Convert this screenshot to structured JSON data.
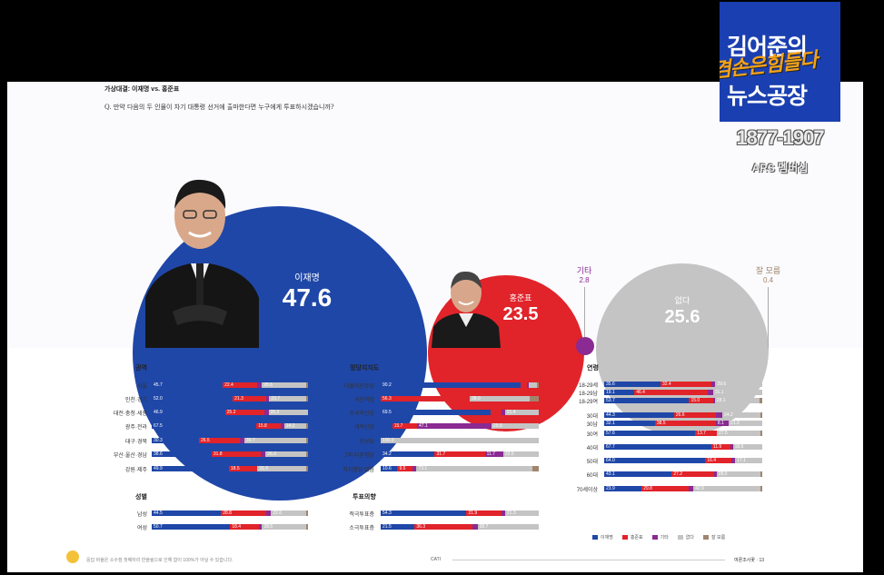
{
  "header": {
    "title": "가상대결: 이재명 vs. 홍준표",
    "question": "Q. 만약 다음의 두 인물이 차기 대통령 선거에 출마한다면 누구에게 투표하시겠습니까?"
  },
  "brand": {
    "line1": "김어준의",
    "line2": "겸손은힘들다",
    "line3": "뉴스공장",
    "phone": "1877-1907",
    "ars": "ARS 멤버십"
  },
  "colors": {
    "lee": "#1f47a8",
    "hong": "#e1232a",
    "other": "#8a2a92",
    "none": "#c4c4c4",
    "dontknow": "#a0856c"
  },
  "summary": {
    "lee_name": "이재명",
    "lee_value": "47.6",
    "hong_name": "홍준표",
    "hong_value": "23.5",
    "other_name": "기타",
    "other_value": "2.8",
    "none_name": "없다",
    "none_value": "25.6",
    "dk_name": "잘 모름",
    "dk_value": "0.4"
  },
  "chart_data": [
    {
      "type": "bar",
      "title": "권역",
      "stacked": true,
      "categories": [
        "서울",
        "인천·경기",
        "대전·충청·세종",
        "광주·전라",
        "대구·경북",
        "부산·울산·경남",
        "강원·제주"
      ],
      "series": [
        {
          "name": "이재명",
          "values": [
            45.7,
            52.0,
            46.9,
            67.5,
            30.3,
            38.6,
            49.9
          ]
        },
        {
          "name": "홍준표",
          "values": [
            22.4,
            21.3,
            25.2,
            15.8,
            26.5,
            31.8,
            18.5
          ]
        },
        {
          "name": "기타",
          "values": [
            2.8,
            2.2,
            2.7,
            2.2,
            2.6,
            3.0,
            0.0
          ]
        },
        {
          "name": "없다",
          "values": [
            28.6,
            23.7,
            25.2,
            14.2,
            39.7,
            26.3,
            31.5
          ]
        },
        {
          "name": "잘 모름",
          "values": [
            0.5,
            0.8,
            0.0,
            0.3,
            0.9,
            0.3,
            0.1
          ]
        }
      ]
    },
    {
      "type": "bar",
      "title": "정당지지도",
      "stacked": true,
      "categories": [
        "더불어민주당",
        "국민의힘",
        "조국혁신당",
        "개혁신당",
        "진보당",
        "그외 다른정당",
        "지지정당 없음"
      ],
      "series": [
        {
          "name": "이재명",
          "values": [
            90.2,
            0.0,
            69.5,
            7.3,
            0.0,
            34.2,
            10.6
          ]
        },
        {
          "name": "홍준표",
          "values": [
            3.9,
            56.3,
            6.8,
            15.7,
            0.0,
            31.7,
            9.5
          ]
        },
        {
          "name": "기타",
          "values": [
            0.5,
            0.0,
            2.3,
            47.1,
            0.0,
            11.7,
            2.6
          ]
        },
        {
          "name": "없다",
          "values": [
            5.2,
            38.0,
            21.4,
            29.9,
            100.0,
            22.5,
            73.1
          ]
        },
        {
          "name": "잘 모름",
          "values": [
            0.2,
            5.7,
            0.0,
            0.0,
            0.0,
            0.0,
            4.2
          ]
        }
      ]
    },
    {
      "type": "bar",
      "title": "연령",
      "stacked": true,
      "categories": [
        "18-29세",
        "18-29남",
        "18-29여",
        "30대",
        "30남",
        "30여",
        "40대",
        "50대",
        "60대",
        "70세이상"
      ],
      "series": [
        {
          "name": "이재명",
          "values": [
            35.6,
            19.1,
            53.7,
            44.3,
            32.1,
            57.6,
            67.7,
            64.0,
            43.1,
            23.9
          ]
        },
        {
          "name": "홍준표",
          "values": [
            32.4,
            46.4,
            15.0,
            26.6,
            38.5,
            13.7,
            11.9,
            16.4,
            27.2,
            29.8
          ]
        },
        {
          "name": "기타",
          "values": [
            2.4,
            3.4,
            1.3,
            4.1,
            8.1,
            0.0,
            1.8,
            2.5,
            1.4,
            3.2
          ]
        },
        {
          "name": "없다",
          "values": [
            29.6,
            31.1,
            28.1,
            24.2,
            21.3,
            27.5,
            18.6,
            17.1,
            28.0,
            42.9
          ]
        },
        {
          "name": "잘 모름",
          "values": [
            0.0,
            0.0,
            1.9,
            0.8,
            0.0,
            1.2,
            0.0,
            0.0,
            0.3,
            0.2
          ]
        }
      ]
    },
    {
      "type": "bar",
      "title": "성별",
      "stacked": true,
      "categories": [
        "남성",
        "여성"
      ],
      "series": [
        {
          "name": "이재명",
          "values": [
            44.5,
            50.7
          ]
        },
        {
          "name": "홍준표",
          "values": [
            28.8,
            18.4
          ]
        },
        {
          "name": "기타",
          "values": [
            3.4,
            2.2
          ]
        },
        {
          "name": "없다",
          "values": [
            22.6,
            28.5
          ]
        },
        {
          "name": "잘 모름",
          "values": [
            0.7,
            0.2
          ]
        }
      ]
    },
    {
      "type": "bar",
      "title": "투표의향",
      "stacked": true,
      "categories": [
        "적극투표층",
        "소극투표층"
      ],
      "series": [
        {
          "name": "이재명",
          "values": [
            54.3,
            21.5
          ]
        },
        {
          "name": "홍준표",
          "values": [
            21.9,
            36.3
          ]
        },
        {
          "name": "기타",
          "values": [
            2.5,
            3.5
          ]
        },
        {
          "name": "없다",
          "values": [
            21.3,
            38.7
          ]
        },
        {
          "name": "잘 모름",
          "values": [
            0.0,
            0.0
          ]
        }
      ]
    }
  ],
  "legend": [
    "이재명",
    "홍준표",
    "기타",
    "없다",
    "잘 모름"
  ],
  "footer": {
    "note": "응답 비율은 소수점 첫째자리 반올림으로 인해 합이 100%가 아닐 수 있습니다.",
    "center": "CATI",
    "right": "여론조사꽃 · 13"
  }
}
